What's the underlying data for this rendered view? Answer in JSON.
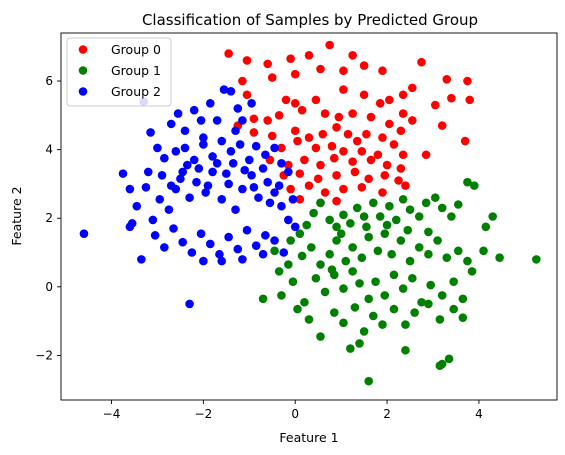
{
  "chart_data": {
    "type": "scatter",
    "title": "Classification of Samples by Predicted Group",
    "xlabel": "Feature 1",
    "ylabel": "Feature 2",
    "xlim": [
      -5.1,
      5.7
    ],
    "ylim": [
      -3.3,
      7.4
    ],
    "xticks": [
      -4,
      -2,
      0,
      2,
      4
    ],
    "yticks": [
      -2,
      0,
      2,
      4,
      6
    ],
    "grid": false,
    "legend_position": "top-left",
    "series": [
      {
        "name": "Group 0",
        "color": "#ff0000",
        "points": [
          [
            -1.45,
            6.8
          ],
          [
            -1.05,
            6.6
          ],
          [
            -0.6,
            6.5
          ],
          [
            -0.1,
            6.65
          ],
          [
            0.3,
            6.75
          ],
          [
            0.75,
            7.05
          ],
          [
            1.25,
            6.75
          ],
          [
            1.5,
            6.45
          ],
          [
            2.75,
            6.55
          ],
          [
            3.3,
            6.05
          ],
          [
            3.75,
            6.0
          ],
          [
            -1.15,
            6.0
          ],
          [
            -0.5,
            6.1
          ],
          [
            0.0,
            6.2
          ],
          [
            0.55,
            6.35
          ],
          [
            1.05,
            6.3
          ],
          [
            1.9,
            6.3
          ],
          [
            2.55,
            5.8
          ],
          [
            2.35,
            5.6
          ],
          [
            3.4,
            5.5
          ],
          [
            3.8,
            5.45
          ],
          [
            -1.05,
            5.6
          ],
          [
            -0.2,
            5.45
          ],
          [
            0.0,
            5.35
          ],
          [
            0.45,
            5.45
          ],
          [
            1.05,
            5.75
          ],
          [
            1.5,
            5.6
          ],
          [
            1.85,
            5.35
          ],
          [
            2.05,
            5.45
          ],
          [
            2.35,
            5.05
          ],
          [
            3.05,
            5.3
          ],
          [
            -0.9,
            4.9
          ],
          [
            -0.6,
            4.85
          ],
          [
            -0.35,
            5.0
          ],
          [
            0.15,
            5.15
          ],
          [
            0.65,
            5.05
          ],
          [
            0.95,
            4.95
          ],
          [
            1.25,
            5.05
          ],
          [
            1.65,
            4.95
          ],
          [
            2.05,
            4.75
          ],
          [
            2.55,
            4.85
          ],
          [
            3.2,
            4.7
          ],
          [
            -1.25,
            4.7
          ],
          [
            -0.9,
            4.5
          ],
          [
            -0.5,
            4.4
          ],
          [
            0.0,
            4.55
          ],
          [
            0.3,
            4.35
          ],
          [
            0.6,
            4.45
          ],
          [
            0.9,
            4.65
          ],
          [
            1.15,
            4.45
          ],
          [
            1.35,
            4.25
          ],
          [
            1.55,
            4.45
          ],
          [
            1.9,
            4.35
          ],
          [
            2.3,
            4.55
          ],
          [
            -0.3,
            4.05
          ],
          [
            0.05,
            4.25
          ],
          [
            0.45,
            4.05
          ],
          [
            0.8,
            4.1
          ],
          [
            1.05,
            3.95
          ],
          [
            1.45,
            3.95
          ],
          [
            1.8,
            3.85
          ],
          [
            2.15,
            4.15
          ],
          [
            2.35,
            3.85
          ],
          [
            2.85,
            3.85
          ],
          [
            3.7,
            4.25
          ],
          [
            -0.55,
            3.7
          ],
          [
            -0.15,
            3.55
          ],
          [
            0.2,
            3.7
          ],
          [
            0.55,
            3.55
          ],
          [
            0.85,
            3.75
          ],
          [
            1.25,
            3.65
          ],
          [
            1.65,
            3.7
          ],
          [
            2.0,
            3.55
          ],
          [
            2.3,
            3.45
          ],
          [
            -0.25,
            3.25
          ],
          [
            0.1,
            3.3
          ],
          [
            0.5,
            3.15
          ],
          [
            0.9,
            3.25
          ],
          [
            1.3,
            3.35
          ],
          [
            1.6,
            3.15
          ],
          [
            1.95,
            3.25
          ],
          [
            2.25,
            3.1
          ],
          [
            -0.1,
            2.85
          ],
          [
            0.3,
            2.95
          ],
          [
            0.65,
            2.75
          ],
          [
            1.05,
            2.85
          ],
          [
            1.45,
            2.9
          ],
          [
            1.9,
            2.75
          ],
          [
            2.4,
            2.95
          ],
          [
            0.1,
            2.55
          ],
          [
            0.55,
            2.45
          ],
          [
            0.9,
            2.5
          ]
        ]
      },
      {
        "name": "Group 1",
        "color": "#008000",
        "points": [
          [
            -0.45,
            1.05
          ],
          [
            -0.35,
            0.45
          ],
          [
            -0.1,
            1.35
          ],
          [
            0.1,
            1.55
          ],
          [
            0.25,
            1.8
          ],
          [
            0.4,
            2.15
          ],
          [
            0.55,
            2.45
          ],
          [
            0.75,
            1.95
          ],
          [
            0.9,
            1.75
          ],
          [
            1.05,
            2.1
          ],
          [
            1.2,
            1.85
          ],
          [
            1.35,
            2.3
          ],
          [
            1.5,
            2.05
          ],
          [
            1.7,
            2.45
          ],
          [
            1.85,
            2.05
          ],
          [
            2.05,
            2.35
          ],
          [
            2.2,
            1.95
          ],
          [
            2.35,
            2.55
          ],
          [
            2.5,
            2.25
          ],
          [
            2.7,
            2.05
          ],
          [
            2.85,
            2.45
          ],
          [
            3.05,
            2.6
          ],
          [
            3.2,
            2.3
          ],
          [
            3.4,
            2.05
          ],
          [
            3.55,
            2.4
          ],
          [
            3.75,
            3.05
          ],
          [
            3.9,
            2.95
          ],
          [
            4.15,
            1.75
          ],
          [
            4.3,
            2.05
          ],
          [
            5.25,
            0.8
          ],
          [
            4.45,
            0.85
          ],
          [
            -0.15,
            0.65
          ],
          [
            0.15,
            0.9
          ],
          [
            0.35,
            1.15
          ],
          [
            0.55,
            0.65
          ],
          [
            0.75,
            0.95
          ],
          [
            0.9,
            1.35
          ],
          [
            1.1,
            0.75
          ],
          [
            1.25,
            1.15
          ],
          [
            1.45,
            0.85
          ],
          [
            1.6,
            1.45
          ],
          [
            1.8,
            1.05
          ],
          [
            1.95,
            1.55
          ],
          [
            2.1,
            0.95
          ],
          [
            2.3,
            1.35
          ],
          [
            2.5,
            0.75
          ],
          [
            2.7,
            1.15
          ],
          [
            2.9,
            0.95
          ],
          [
            3.1,
            1.35
          ],
          [
            3.3,
            0.85
          ],
          [
            3.55,
            1.05
          ],
          [
            3.75,
            0.75
          ],
          [
            4.1,
            1.05
          ],
          [
            -0.7,
            -0.35
          ],
          [
            -0.3,
            -0.25
          ],
          [
            -0.05,
            0.15
          ],
          [
            0.2,
            -0.45
          ],
          [
            0.45,
            0.25
          ],
          [
            0.65,
            -0.15
          ],
          [
            0.85,
            0.35
          ],
          [
            1.05,
            -0.05
          ],
          [
            1.25,
            0.45
          ],
          [
            1.4,
            0.1
          ],
          [
            1.6,
            -0.35
          ],
          [
            1.75,
            0.15
          ],
          [
            1.95,
            -0.25
          ],
          [
            2.15,
            0.35
          ],
          [
            2.35,
            -0.05
          ],
          [
            2.55,
            0.25
          ],
          [
            2.75,
            -0.45
          ],
          [
            2.95,
            0.05
          ],
          [
            3.2,
            -0.25
          ],
          [
            3.45,
            0.15
          ],
          [
            3.65,
            -0.35
          ],
          [
            3.85,
            0.45
          ],
          [
            0.05,
            -0.65
          ],
          [
            0.3,
            -0.95
          ],
          [
            0.55,
            -1.45
          ],
          [
            0.85,
            -0.75
          ],
          [
            1.05,
            -1.05
          ],
          [
            1.3,
            -0.6
          ],
          [
            1.5,
            -1.3
          ],
          [
            1.7,
            -0.85
          ],
          [
            1.9,
            -1.1
          ],
          [
            2.15,
            -0.65
          ],
          [
            2.4,
            -1.1
          ],
          [
            2.6,
            -0.75
          ],
          [
            2.9,
            -0.5
          ],
          [
            3.15,
            -0.95
          ],
          [
            3.45,
            -0.65
          ],
          [
            3.65,
            -0.9
          ],
          [
            1.2,
            -1.8
          ],
          [
            1.4,
            -1.65
          ],
          [
            2.4,
            -1.85
          ],
          [
            3.2,
            -2.25
          ],
          [
            3.35,
            -2.1
          ],
          [
            1.6,
            -2.75
          ],
          [
            3.15,
            -2.3
          ],
          [
            0.8,
            0.5
          ],
          [
            1.0,
            1.55
          ],
          [
            1.55,
            1.75
          ],
          [
            2.0,
            1.8
          ],
          [
            2.45,
            1.65
          ],
          [
            2.9,
            1.6
          ]
        ]
      },
      {
        "name": "Group 2",
        "color": "#0000ff",
        "points": [
          [
            -4.6,
            1.55
          ],
          [
            -2.3,
            -0.5
          ],
          [
            -3.75,
            3.3
          ],
          [
            -3.6,
            2.85
          ],
          [
            -3.3,
            5.4
          ],
          [
            -3.15,
            4.5
          ],
          [
            -3.0,
            4.05
          ],
          [
            -2.7,
            4.75
          ],
          [
            -2.55,
            5.05
          ],
          [
            -2.4,
            4.55
          ],
          [
            -2.2,
            5.15
          ],
          [
            -2.05,
            4.85
          ],
          [
            -1.7,
            4.85
          ],
          [
            -1.55,
            5.75
          ],
          [
            -1.4,
            5.7
          ],
          [
            -1.3,
            4.55
          ],
          [
            -1.15,
            4.85
          ],
          [
            -3.55,
            1.85
          ],
          [
            -3.35,
            0.8
          ],
          [
            -3.45,
            2.35
          ],
          [
            -3.25,
            2.9
          ],
          [
            -3.1,
            1.95
          ],
          [
            -2.95,
            2.55
          ],
          [
            -2.75,
            2.25
          ],
          [
            -2.6,
            2.85
          ],
          [
            -2.45,
            3.35
          ],
          [
            -2.3,
            2.6
          ],
          [
            -2.15,
            3.05
          ],
          [
            -1.95,
            2.75
          ],
          [
            -1.8,
            3.35
          ],
          [
            -1.6,
            2.55
          ],
          [
            -1.45,
            3.0
          ],
          [
            -1.3,
            2.25
          ],
          [
            -1.15,
            2.85
          ],
          [
            -0.95,
            3.25
          ],
          [
            -0.8,
            2.6
          ],
          [
            -0.6,
            3.05
          ],
          [
            -0.45,
            2.75
          ],
          [
            -0.3,
            2.35
          ],
          [
            -0.15,
            1.95
          ],
          [
            -0.05,
            2.55
          ],
          [
            0.0,
            1.75
          ],
          [
            -3.6,
            1.75
          ],
          [
            -3.05,
            1.5
          ],
          [
            -2.85,
            1.15
          ],
          [
            -2.65,
            1.7
          ],
          [
            -2.45,
            1.3
          ],
          [
            -2.25,
            1.0
          ],
          [
            -2.05,
            1.55
          ],
          [
            -1.85,
            1.25
          ],
          [
            -1.65,
            0.95
          ],
          [
            -1.45,
            1.45
          ],
          [
            -1.25,
            1.1
          ],
          [
            -1.05,
            1.65
          ],
          [
            -0.85,
            1.2
          ],
          [
            -0.65,
            1.5
          ],
          [
            -0.45,
            1.35
          ],
          [
            -0.25,
            1.0
          ],
          [
            -2.85,
            3.75
          ],
          [
            -2.6,
            3.95
          ],
          [
            -2.4,
            4.05
          ],
          [
            -2.2,
            3.7
          ],
          [
            -2.0,
            4.15
          ],
          [
            -1.8,
            3.8
          ],
          [
            -1.6,
            4.25
          ],
          [
            -1.4,
            3.95
          ],
          [
            -1.2,
            4.15
          ],
          [
            -1.0,
            3.7
          ],
          [
            -0.85,
            4.1
          ],
          [
            -0.65,
            3.85
          ],
          [
            -0.45,
            4.05
          ],
          [
            -0.3,
            3.6
          ],
          [
            -0.15,
            3.35
          ],
          [
            -3.2,
            3.35
          ],
          [
            -2.9,
            3.25
          ],
          [
            -2.7,
            2.95
          ],
          [
            -2.5,
            3.15
          ],
          [
            -2.35,
            3.55
          ],
          [
            -2.1,
            3.45
          ],
          [
            -1.9,
            2.95
          ],
          [
            -1.7,
            3.6
          ],
          [
            -1.5,
            3.3
          ],
          [
            -1.35,
            3.6
          ],
          [
            -1.1,
            3.4
          ],
          [
            -0.9,
            2.9
          ],
          [
            -0.7,
            3.45
          ],
          [
            -0.55,
            2.45
          ],
          [
            -0.35,
            2.95
          ],
          [
            -2.0,
            0.75
          ],
          [
            -1.6,
            0.75
          ],
          [
            -1.15,
            0.8
          ],
          [
            -0.7,
            0.95
          ],
          [
            -1.85,
            5.35
          ],
          [
            -1.25,
            5.2
          ],
          [
            -0.95,
            5.35
          ],
          [
            -2.0,
            4.35
          ]
        ]
      }
    ]
  }
}
